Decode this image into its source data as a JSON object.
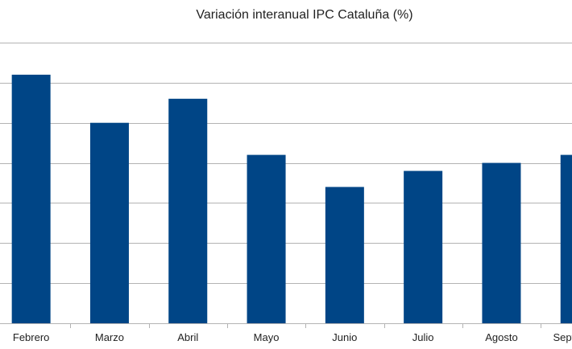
{
  "chart_data": {
    "type": "bar",
    "title": "Variación interanual IPC Cataluña (%)",
    "categories": [
      "Febrero",
      "Marzo",
      "Abril",
      "Mayo",
      "Junio",
      "Julio",
      "Agosto",
      "Septiembre"
    ],
    "values": [
      3.1,
      2.5,
      2.8,
      2.1,
      1.7,
      1.9,
      2.0,
      2.1
    ],
    "ylim": [
      0,
      3.5
    ],
    "grid": true,
    "colors": {
      "bar": "#004586",
      "grid": "#b3b3b3",
      "axis": "#b3b3b3"
    }
  }
}
